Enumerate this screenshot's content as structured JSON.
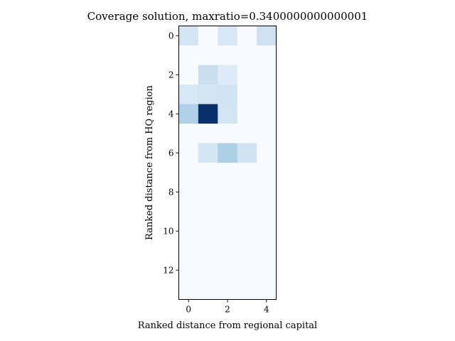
{
  "chart_data": {
    "type": "heatmap",
    "title": "Coverage solution, maxratio=0.3400000000000001",
    "xlabel": "Ranked distance from regional capital",
    "ylabel": "Ranked distance from HQ region",
    "colormap": "Blues",
    "x_ticks": [
      0,
      2,
      4
    ],
    "y_ticks": [
      0,
      2,
      4,
      6,
      8,
      10,
      12
    ],
    "n_rows": 14,
    "n_cols": 5,
    "vmin": 0,
    "vmax": 1,
    "grid": false,
    "values": [
      [
        0.18,
        0,
        0.16,
        0,
        0.2
      ],
      [
        0,
        0,
        0,
        0,
        0
      ],
      [
        0,
        0.23,
        0.13,
        0,
        0
      ],
      [
        0.16,
        0.18,
        0.19,
        0,
        0
      ],
      [
        0.32,
        1.0,
        0.18,
        0,
        0
      ],
      [
        0,
        0,
        0,
        0,
        0
      ],
      [
        0,
        0.17,
        0.33,
        0.2,
        0
      ],
      [
        0,
        0,
        0,
        0,
        0
      ],
      [
        0,
        0,
        0,
        0,
        0
      ],
      [
        0,
        0,
        0,
        0,
        0
      ],
      [
        0,
        0,
        0,
        0,
        0
      ],
      [
        0,
        0,
        0,
        0,
        0
      ],
      [
        0,
        0,
        0,
        0,
        0
      ],
      [
        0,
        0,
        0,
        0,
        0
      ]
    ]
  }
}
